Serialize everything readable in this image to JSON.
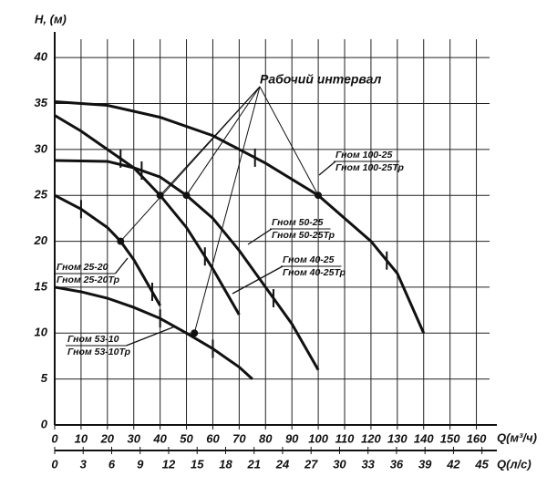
{
  "chart_data": {
    "type": "line",
    "y_label": "H, (м)",
    "x_label": "Q(м³/ч)",
    "x2_label": "Q(л/с)",
    "annotation": "Рабочий интервал",
    "xlim": [
      0,
      165
    ],
    "xticks": [
      0,
      10,
      20,
      30,
      40,
      50,
      60,
      70,
      80,
      90,
      100,
      110,
      120,
      130,
      140,
      150,
      160
    ],
    "x2lim": [
      0,
      45.8
    ],
    "x2ticks": [
      0,
      3,
      6,
      9,
      12,
      15,
      18,
      21,
      24,
      27,
      30,
      33,
      36,
      39,
      42,
      45
    ],
    "ylim": [
      0,
      42
    ],
    "yticks": [
      0,
      5,
      10,
      15,
      20,
      25,
      30,
      35,
      40
    ],
    "grid": true,
    "series": [
      {
        "name": "Гном 100-25",
        "name_tr": "Гном 100-25Тр",
        "color": "#111111",
        "x": [
          0,
          20,
          40,
          60,
          80,
          100,
          120,
          130,
          140
        ],
        "values": [
          35.2,
          34.8,
          33.5,
          31.5,
          28.5,
          25,
          20,
          16.5,
          10
        ],
        "point": [
          100,
          25
        ],
        "interval": [
          76,
          126
        ]
      },
      {
        "name": "Гном 50-25",
        "name_tr": "Гном 50-25Тр",
        "color": "#111111",
        "x": [
          0,
          20,
          30,
          40,
          50,
          60,
          70,
          80,
          90,
          100
        ],
        "values": [
          28.8,
          28.7,
          28,
          27,
          25,
          22.5,
          19,
          15,
          11,
          6
        ],
        "point": [
          50,
          25
        ],
        "interval": [
          33,
          83
        ]
      },
      {
        "name": "Гном 40-25",
        "name_tr": "Гном 40-25Тр",
        "color": "#111111",
        "x": [
          0,
          10,
          20,
          30,
          40,
          50,
          60,
          70
        ],
        "values": [
          33.7,
          32,
          30,
          28,
          25,
          21.5,
          17,
          12
        ],
        "point": [
          40,
          25
        ],
        "interval": [
          25,
          57
        ]
      },
      {
        "name": "Гном 25-20",
        "name_tr": "Гном 25-20Тр",
        "color": "#111111",
        "x": [
          0,
          10,
          20,
          25,
          30,
          35,
          40
        ],
        "values": [
          25,
          23.5,
          21.5,
          20,
          18,
          15.5,
          13
        ],
        "point": [
          25,
          20
        ],
        "interval": [
          10,
          37
        ]
      },
      {
        "name": "Гном 53-10",
        "name_tr": "Гном 53-10Тр",
        "color": "#111111",
        "x": [
          0,
          10,
          20,
          30,
          40,
          50,
          60,
          70,
          75
        ],
        "values": [
          15,
          14.5,
          13.8,
          12.8,
          11.6,
          10,
          8.3,
          6.3,
          5
        ],
        "point": [
          53,
          10
        ],
        "interval": [
          40,
          60
        ]
      }
    ]
  }
}
